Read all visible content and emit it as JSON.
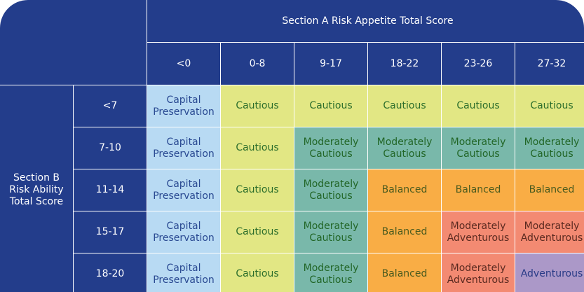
{
  "section_a": {
    "title": "Section A Risk Appetite Total Score",
    "columns": [
      "<0",
      "0-8",
      "9-17",
      "18-22",
      "23-26",
      "27-32"
    ]
  },
  "section_b": {
    "title": "Section B\nRisk Ability\nTotal Score",
    "rows": [
      "<7",
      "7-10",
      "11-14",
      "15-17",
      "18-20"
    ]
  },
  "colors": {
    "navy": "#233d8b",
    "Capital Preservation": "#b8daf3",
    "Cautious": "#e2e784",
    "Moderately Cautious": "#79b8aa",
    "Balanced": "#f9ad45",
    "Moderately Adventurous": "#f38a72",
    "Adventurous": "#ab98c8"
  },
  "matrix": [
    [
      "Capital\nPreservation",
      "Cautious",
      "Cautious",
      "Cautious",
      "Cautious",
      "Cautious"
    ],
    [
      "Capital\nPreservation",
      "Cautious",
      "Moderately\nCautious",
      "Moderately\nCautious",
      "Moderately\nCautious",
      "Moderately\nCautious"
    ],
    [
      "Capital\nPreservation",
      "Cautious",
      "Moderately\nCautious",
      "Balanced",
      "Balanced",
      "Balanced"
    ],
    [
      "Capital\nPreservation",
      "Cautious",
      "Moderately\nCautious",
      "Balanced",
      "Moderately\nAdventurous",
      "Moderately\nAdventurous"
    ],
    [
      "Capital\nPreservation",
      "Cautious",
      "Moderately\nCautious",
      "Balanced",
      "Moderately\nAdventurous",
      "Adventurous"
    ]
  ]
}
